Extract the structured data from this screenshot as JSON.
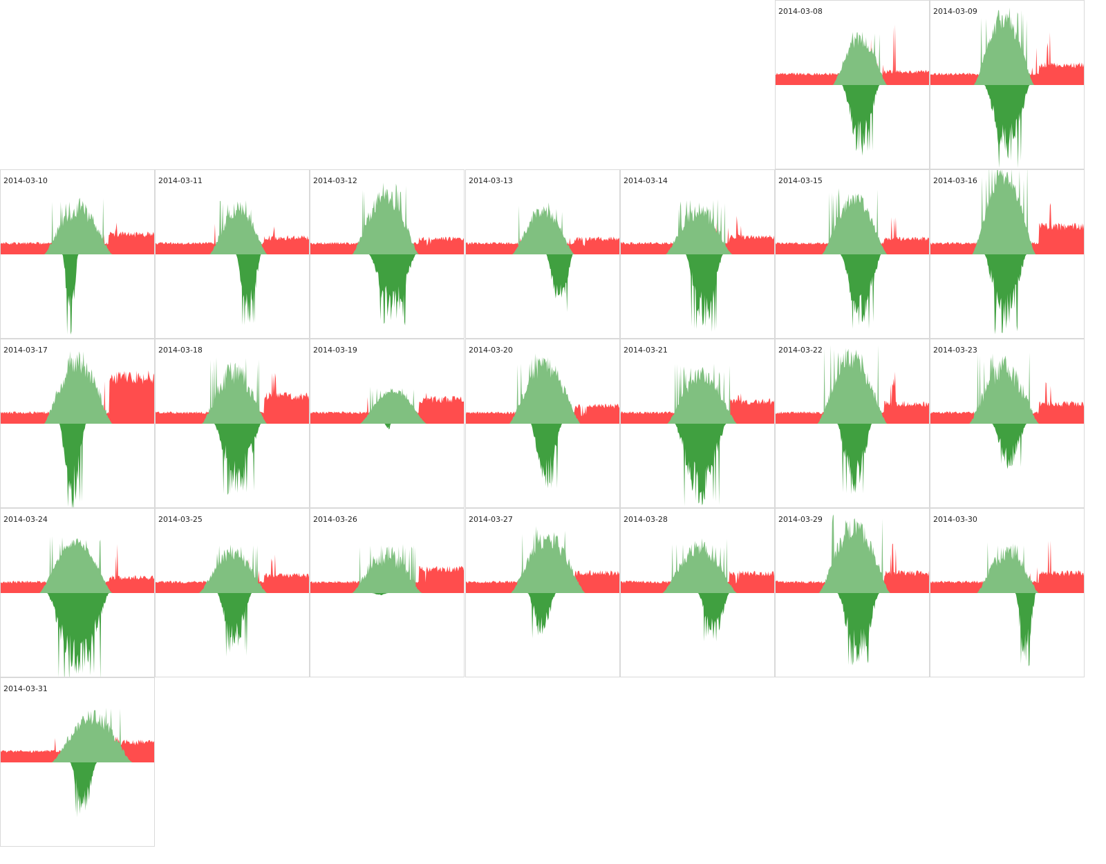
{
  "colors": {
    "consumption": "#ff4d4d",
    "production": "#80c080",
    "export": "#40a040",
    "border": "#d9d9d9"
  },
  "chart_data": {
    "type": "calendar-area",
    "layout": {
      "columns": 7,
      "start_weekday_index": 5
    },
    "series": [
      {
        "key": "consumption"
      },
      {
        "key": "production"
      },
      {
        "key": "export"
      }
    ],
    "days": [
      {
        "date": "2014-03-08",
        "base": 0.1,
        "evening": 0.12,
        "pv_peak": 0.5,
        "pv_start": 0.37,
        "pv_end": 0.72,
        "net_peak": 0.62,
        "net_start": 0.43,
        "net_end": 0.67,
        "clouds": 0.6,
        "evening_spike": 0.55
      },
      {
        "date": "2014-03-09",
        "base": 0.1,
        "evening": 0.18,
        "pv_peak": 0.68,
        "pv_start": 0.28,
        "pv_end": 0.67,
        "net_peak": 0.72,
        "net_start": 0.35,
        "net_end": 0.64,
        "clouds": 0.5,
        "evening_spike": 0.48
      },
      {
        "date": "2014-03-10",
        "base": 0.1,
        "evening": 0.18,
        "pv_peak": 0.5,
        "pv_start": 0.28,
        "pv_end": 0.72,
        "net_peak": 0.7,
        "net_start": 0.4,
        "net_end": 0.5,
        "clouds": 0.7,
        "evening_spike": 0.3
      },
      {
        "date": "2014-03-11",
        "base": 0.1,
        "evening": 0.15,
        "pv_peak": 0.48,
        "pv_start": 0.35,
        "pv_end": 0.72,
        "net_peak": 0.65,
        "net_start": 0.52,
        "net_end": 0.68,
        "clouds": 0.6,
        "evening_spike": 0.3
      },
      {
        "date": "2014-03-12",
        "base": 0.1,
        "evening": 0.14,
        "pv_peak": 0.62,
        "pv_start": 0.27,
        "pv_end": 0.7,
        "net_peak": 0.62,
        "net_start": 0.38,
        "net_end": 0.68,
        "clouds": 0.6,
        "evening_spike": 0.1
      },
      {
        "date": "2014-03-13",
        "base": 0.1,
        "evening": 0.14,
        "pv_peak": 0.45,
        "pv_start": 0.3,
        "pv_end": 0.7,
        "net_peak": 0.52,
        "net_start": 0.52,
        "net_end": 0.69,
        "clouds": 0.5,
        "evening_spike": 0.1
      },
      {
        "date": "2014-03-14",
        "base": 0.1,
        "evening": 0.16,
        "pv_peak": 0.48,
        "pv_start": 0.29,
        "pv_end": 0.72,
        "net_peak": 0.68,
        "net_start": 0.42,
        "net_end": 0.66,
        "clouds": 0.7,
        "evening_spike": 0.36
      },
      {
        "date": "2014-03-15",
        "base": 0.1,
        "evening": 0.14,
        "pv_peak": 0.58,
        "pv_start": 0.3,
        "pv_end": 0.72,
        "net_peak": 0.66,
        "net_start": 0.42,
        "net_end": 0.68,
        "clouds": 0.5,
        "evening_spike": 0.45
      },
      {
        "date": "2014-03-16",
        "base": 0.1,
        "evening": 0.25,
        "pv_peak": 0.78,
        "pv_start": 0.27,
        "pv_end": 0.68,
        "net_peak": 0.72,
        "net_start": 0.35,
        "net_end": 0.62,
        "clouds": 0.4,
        "evening_spike": 0.52
      },
      {
        "date": "2014-03-17",
        "base": 0.1,
        "evening": 0.42,
        "pv_peak": 0.68,
        "pv_start": 0.28,
        "pv_end": 0.72,
        "net_peak": 0.75,
        "net_start": 0.38,
        "net_end": 0.55,
        "clouds": 0.7,
        "evening_spike": 0.48
      },
      {
        "date": "2014-03-18",
        "base": 0.1,
        "evening": 0.25,
        "pv_peak": 0.58,
        "pv_start": 0.3,
        "pv_end": 0.72,
        "net_peak": 0.63,
        "net_start": 0.38,
        "net_end": 0.68,
        "clouds": 0.8,
        "evening_spike": 0.52
      },
      {
        "date": "2014-03-19",
        "base": 0.1,
        "evening": 0.22,
        "pv_peak": 0.32,
        "pv_start": 0.32,
        "pv_end": 0.75,
        "net_peak": 0.05,
        "net_start": 0.48,
        "net_end": 0.52,
        "clouds": 0.3,
        "evening_spike": 0.28
      },
      {
        "date": "2014-03-20",
        "base": 0.1,
        "evening": 0.16,
        "pv_peak": 0.62,
        "pv_start": 0.28,
        "pv_end": 0.74,
        "net_peak": 0.58,
        "net_start": 0.42,
        "net_end": 0.62,
        "clouds": 0.6,
        "evening_spike": 0.1
      },
      {
        "date": "2014-03-21",
        "base": 0.1,
        "evening": 0.2,
        "pv_peak": 0.52,
        "pv_start": 0.3,
        "pv_end": 0.75,
        "net_peak": 0.75,
        "net_start": 0.35,
        "net_end": 0.68,
        "clouds": 0.6,
        "evening_spike": 0.32
      },
      {
        "date": "2014-03-22",
        "base": 0.1,
        "evening": 0.18,
        "pv_peak": 0.68,
        "pv_start": 0.27,
        "pv_end": 0.72,
        "net_peak": 0.68,
        "net_start": 0.4,
        "net_end": 0.62,
        "clouds": 0.6,
        "evening_spike": 0.48
      },
      {
        "date": "2014-03-23",
        "base": 0.1,
        "evening": 0.18,
        "pv_peak": 0.62,
        "pv_start": 0.25,
        "pv_end": 0.7,
        "net_peak": 0.4,
        "net_start": 0.4,
        "net_end": 0.62,
        "clouds": 0.8,
        "evening_spike": 0.45
      },
      {
        "date": "2014-03-24",
        "base": 0.1,
        "evening": 0.14,
        "pv_peak": 0.5,
        "pv_start": 0.25,
        "pv_end": 0.72,
        "net_peak": 0.8,
        "net_start": 0.3,
        "net_end": 0.7,
        "clouds": 0.3,
        "evening_spike": 0.45
      },
      {
        "date": "2014-03-25",
        "base": 0.1,
        "evening": 0.16,
        "pv_peak": 0.42,
        "pv_start": 0.28,
        "pv_end": 0.72,
        "net_peak": 0.55,
        "net_start": 0.4,
        "net_end": 0.62,
        "clouds": 0.6,
        "evening_spike": 0.38
      },
      {
        "date": "2014-03-26",
        "base": 0.1,
        "evening": 0.22,
        "pv_peak": 0.45,
        "pv_start": 0.27,
        "pv_end": 0.72,
        "net_peak": 0.02,
        "net_start": 0.4,
        "net_end": 0.5,
        "clouds": 0.9,
        "evening_spike": 0.1
      },
      {
        "date": "2014-03-27",
        "base": 0.1,
        "evening": 0.18,
        "pv_peak": 0.58,
        "pv_start": 0.29,
        "pv_end": 0.77,
        "net_peak": 0.4,
        "net_start": 0.4,
        "net_end": 0.58,
        "clouds": 0.6,
        "evening_spike": 0.2
      },
      {
        "date": "2014-03-28",
        "base": 0.1,
        "evening": 0.18,
        "pv_peak": 0.48,
        "pv_start": 0.27,
        "pv_end": 0.75,
        "net_peak": 0.42,
        "net_start": 0.5,
        "net_end": 0.7,
        "clouds": 0.6,
        "evening_spike": 0.12
      },
      {
        "date": "2014-03-29",
        "base": 0.1,
        "evening": 0.18,
        "pv_peak": 0.7,
        "pv_start": 0.28,
        "pv_end": 0.74,
        "net_peak": 0.65,
        "net_start": 0.4,
        "net_end": 0.67,
        "clouds": 0.6,
        "evening_spike": 0.5
      },
      {
        "date": "2014-03-30",
        "base": 0.1,
        "evening": 0.18,
        "pv_peak": 0.45,
        "pv_start": 0.3,
        "pv_end": 0.7,
        "net_peak": 0.65,
        "net_start": 0.55,
        "net_end": 0.68,
        "clouds": 0.7,
        "evening_spike": 0.52
      },
      {
        "date": "2014-03-31",
        "base": 0.1,
        "evening": 0.18,
        "pv_peak": 0.48,
        "pv_start": 0.33,
        "pv_end": 0.85,
        "net_peak": 0.48,
        "net_start": 0.45,
        "net_end": 0.62,
        "clouds": 0.6,
        "evening_spike": 0.25
      }
    ]
  }
}
